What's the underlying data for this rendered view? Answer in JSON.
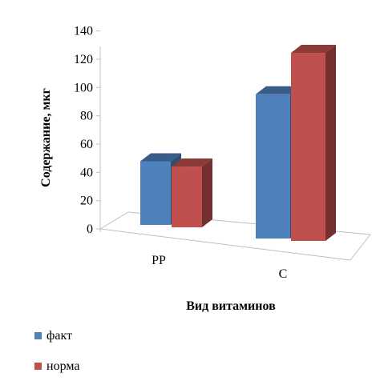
{
  "chart_data": {
    "type": "bar",
    "categories": [
      "PP",
      "C"
    ],
    "series": [
      {
        "name": "факт",
        "values": [
          45,
          102
        ],
        "color": "#4f81bd"
      },
      {
        "name": "норма",
        "values": [
          43,
          133
        ],
        "color": "#c0504d"
      }
    ],
    "xlabel": "Вид витаминов",
    "ylabel": "Содержание, мкг",
    "ylim": [
      0,
      140
    ],
    "yticks": [
      "0",
      "20",
      "40",
      "60",
      "80",
      "100",
      "120",
      "140"
    ],
    "grid": false,
    "legend_position": "bottom-left",
    "style": "3d-clustered-column"
  }
}
